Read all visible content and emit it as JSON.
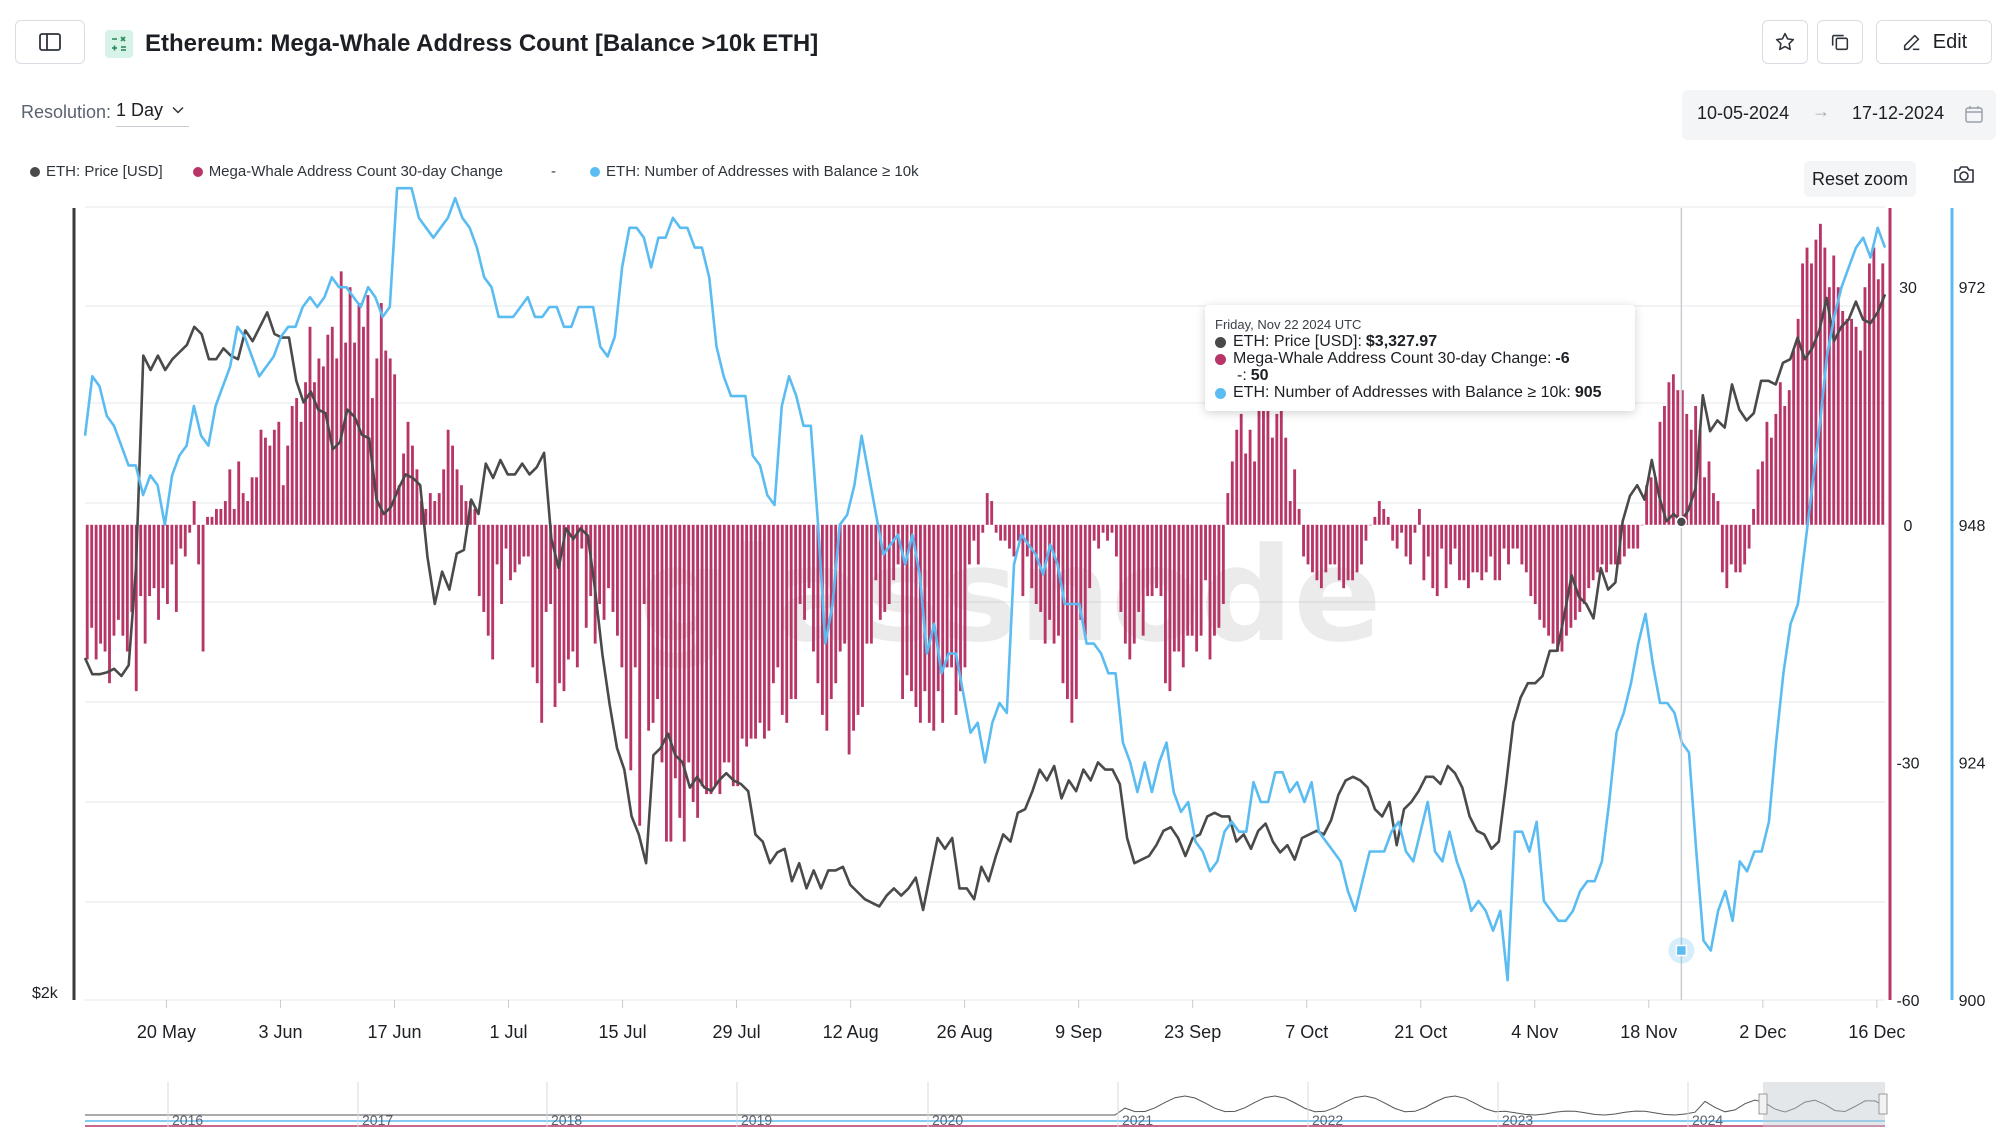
{
  "header": {
    "title": "Ethereum: Mega-Whale Address Count [Balance >10k ETH]",
    "edit_label": "Edit",
    "icons": [
      "sidebar-toggle-icon",
      "formula-icon",
      "star-icon",
      "copy-icon",
      "pencil-icon"
    ]
  },
  "controls": {
    "resolution_label": "Resolution:",
    "resolution_value": "1 Day",
    "date_from": "10-05-2024",
    "date_arrow": "→",
    "date_to": "17-12-2024",
    "reset_zoom": "Reset zoom"
  },
  "legend": [
    {
      "label": "ETH: Price [USD]",
      "color": "#4a4a4a"
    },
    {
      "label": "Mega-Whale Address Count 30-day Change",
      "color": "#b83567"
    },
    {
      "label": "-",
      "color": ""
    },
    {
      "label": "ETH: Number of Addresses with Balance ≥ 10k",
      "color": "#5bbcf2"
    }
  ],
  "tooltip": {
    "date": "Friday, Nov 22 2024 UTC",
    "row1_label": "ETH: Price [USD]:",
    "row1_value": "$3,327.97",
    "row2_label": "Mega-Whale Address Count 30-day Change:",
    "row2_value": "-6",
    "row3_label": "-:",
    "row3_value": "50",
    "row4_label": "ETH: Number of Addresses with Balance ≥ 10k:",
    "row4_value": "905"
  },
  "watermark": "glassnode",
  "chart_data": {
    "type": "bar+line",
    "x_ticks": [
      "20 May",
      "3 Jun",
      "17 Jun",
      "1 Jul",
      "15 Jul",
      "29 Jul",
      "12 Aug",
      "26 Aug",
      "9 Sep",
      "23 Sep",
      "7 Oct",
      "21 Oct",
      "4 Nov",
      "18 Nov",
      "2 Dec",
      "16 Dec"
    ],
    "x_range": [
      "2024-05-10",
      "2024-12-17"
    ],
    "left_axis": {
      "ticks": [
        "$2k"
      ]
    },
    "right_change_axis": {
      "ticks": [
        30,
        0,
        -30,
        -60
      ],
      "ylim": [
        -60,
        40
      ]
    },
    "right_count_axis": {
      "ticks": [
        972,
        948,
        924,
        900
      ],
      "ylim": [
        900,
        980
      ]
    },
    "highlight": {
      "date": "2024-11-22",
      "count": 905,
      "change": -6,
      "price": 3327.97
    },
    "series": [
      {
        "name": "ETH: Number of Addresses with Balance ≥ 10k",
        "axis": "count",
        "type": "line",
        "color": "#5bbcf2",
        "values": [
          957,
          963,
          962,
          959,
          958,
          956,
          954,
          954,
          951,
          953,
          952,
          948,
          953,
          955,
          956,
          960,
          957,
          956,
          960,
          962,
          964,
          968,
          967,
          965,
          963,
          964,
          965,
          967,
          968,
          968,
          970,
          971,
          970,
          971,
          973,
          972,
          972,
          971,
          970,
          972,
          971,
          969,
          970,
          982,
          982,
          982,
          979,
          978,
          977,
          978,
          979,
          981,
          979,
          978,
          976,
          973,
          972,
          969,
          969,
          969,
          970,
          971,
          969,
          969,
          970,
          970,
          968,
          968,
          970,
          970,
          970,
          966,
          965,
          967,
          974,
          978,
          978,
          977,
          974,
          977,
          977,
          979,
          978,
          978,
          976,
          976,
          973,
          966,
          963,
          961,
          961,
          961,
          955,
          954,
          951,
          950,
          960,
          963,
          961,
          958,
          958,
          948,
          936,
          940,
          948,
          949,
          952,
          957,
          953,
          949,
          945,
          946,
          947,
          944,
          947,
          943,
          935,
          938,
          933,
          935,
          935,
          931,
          927,
          928,
          924,
          928,
          930,
          929,
          944,
          947,
          946,
          945,
          943,
          946,
          944,
          940,
          940,
          940,
          936,
          936,
          935,
          933,
          933,
          926,
          924,
          921,
          924,
          921,
          924,
          926,
          921,
          919,
          920,
          916,
          915,
          913,
          914,
          917,
          918,
          917,
          917,
          922,
          920,
          920,
          923,
          923,
          921,
          922,
          920,
          922,
          917,
          916,
          915,
          914,
          911,
          909,
          912,
          915,
          915,
          915,
          917,
          918,
          915,
          914,
          917,
          920,
          915,
          914,
          917,
          914,
          912,
          909,
          910,
          909,
          907,
          909,
          902,
          917,
          917,
          915,
          918,
          910,
          909,
          908,
          908,
          909,
          911,
          912,
          912,
          914,
          920,
          927,
          929,
          932,
          936,
          939,
          934,
          930,
          930,
          929,
          926,
          925,
          915,
          906,
          905,
          909,
          911,
          908,
          914,
          913,
          915,
          915,
          918,
          926,
          933,
          938,
          940,
          946,
          952,
          958,
          965,
          969,
          972,
          974,
          976,
          977,
          975,
          978,
          976
        ]
      },
      {
        "name": "ETH: Price [USD]",
        "axis": "price",
        "type": "line",
        "color": "#4a4a4a",
        "values": [
          2950,
          2905,
          2905,
          2910,
          2920,
          2900,
          2930,
          3200,
          3790,
          3750,
          3790,
          3750,
          3780,
          3800,
          3820,
          3870,
          3850,
          3780,
          3780,
          3810,
          3790,
          3780,
          3860,
          3830,
          3870,
          3910,
          3850,
          3840,
          3840,
          3720,
          3660,
          3690,
          3640,
          3630,
          3530,
          3550,
          3640,
          3620,
          3570,
          3560,
          3390,
          3350,
          3370,
          3420,
          3460,
          3450,
          3430,
          3230,
          3100,
          3190,
          3140,
          3240,
          3250,
          3390,
          3350,
          3490,
          3450,
          3500,
          3460,
          3460,
          3490,
          3460,
          3480,
          3520,
          3280,
          3200,
          3310,
          3280,
          3310,
          3290,
          3140,
          2960,
          2820,
          2700,
          2640,
          2510,
          2460,
          2380,
          2680,
          2700,
          2740,
          2680,
          2660,
          2590,
          2620,
          2590,
          2580,
          2610,
          2630,
          2610,
          2600,
          2580,
          2460,
          2440,
          2380,
          2410,
          2420,
          2330,
          2380,
          2310,
          2360,
          2310,
          2360,
          2360,
          2370,
          2320,
          2300,
          2280,
          2270,
          2260,
          2290,
          2310,
          2290,
          2310,
          2340,
          2250,
          2350,
          2450,
          2420,
          2450,
          2310,
          2310,
          2280,
          2370,
          2330,
          2400,
          2460,
          2440,
          2520,
          2530,
          2580,
          2640,
          2610,
          2650,
          2560,
          2610,
          2580,
          2640,
          2610,
          2660,
          2640,
          2640,
          2600,
          2450,
          2380,
          2390,
          2400,
          2430,
          2470,
          2480,
          2450,
          2400,
          2450,
          2460,
          2510,
          2520,
          2510,
          2510,
          2440,
          2460,
          2420,
          2470,
          2490,
          2440,
          2410,
          2430,
          2390,
          2450,
          2460,
          2470,
          2460,
          2500,
          2570,
          2610,
          2620,
          2610,
          2590,
          2530,
          2510,
          2550,
          2430,
          2530,
          2550,
          2580,
          2620,
          2620,
          2600,
          2650,
          2630,
          2590,
          2510,
          2470,
          2460,
          2420,
          2440,
          2600,
          2770,
          2840,
          2880,
          2880,
          2900,
          2970,
          2970,
          3070,
          3180,
          3120,
          3100,
          3060,
          3200,
          3140,
          3160,
          3330,
          3400,
          3430,
          3390,
          3500,
          3400,
          3330,
          3350,
          3330,
          3360,
          3420,
          3680,
          3580,
          3610,
          3590,
          3710,
          3640,
          3610,
          3630,
          3720,
          3720,
          3710,
          3770,
          3780,
          3840,
          3780,
          3810,
          3860,
          3950,
          3830,
          3870,
          3890,
          3940,
          3890,
          3880,
          3910,
          3960
        ]
      },
      {
        "name": "Mega-Whale Address Count 30-day Change",
        "axis": "change",
        "type": "bar",
        "color": "#b83567",
        "values": [
          -17,
          -13,
          -17,
          -15,
          -16,
          -20,
          -14,
          -12,
          -14,
          -16,
          -11,
          -21,
          -9,
          -15,
          -9,
          -8,
          -12,
          -8,
          -10,
          -5,
          -11,
          -3,
          -4,
          -1,
          3,
          -5,
          -16,
          1,
          1,
          2,
          2,
          3,
          7,
          2,
          8,
          4,
          3,
          6,
          6,
          12,
          11,
          10,
          12,
          13,
          5,
          10,
          15,
          16,
          13,
          18,
          25,
          18,
          21,
          20,
          24,
          25,
          21,
          32,
          23,
          30,
          23,
          28,
          25,
          29,
          16,
          21,
          28,
          22,
          21,
          19,
          5,
          9,
          13,
          10,
          7,
          3,
          2,
          4,
          3,
          4,
          7,
          12,
          10,
          7,
          5,
          3,
          3,
          2,
          -9,
          -11,
          -14,
          -17,
          -5,
          -10,
          -3,
          -7,
          -6,
          -5,
          -4,
          -4,
          -18,
          -20,
          -25,
          -11,
          -10,
          -23,
          -20,
          -21,
          -17,
          -16,
          -18,
          -3,
          -13,
          -9,
          -15,
          -10,
          -12,
          -8,
          -11,
          -14,
          -18,
          -27,
          -31,
          -18,
          -38,
          -10,
          -26,
          -25,
          -22,
          -30,
          -40,
          -40,
          -32,
          -37,
          -40,
          -30,
          -35,
          -37,
          -33,
          -34,
          -34,
          -33,
          -34,
          -30,
          -30,
          -33,
          -33,
          -27,
          -28,
          -27,
          -27,
          -25,
          -27,
          -26,
          -20,
          -18,
          -24,
          -25,
          -22,
          -22,
          -10,
          -12,
          -8,
          -16,
          -20,
          -24,
          -26,
          -22,
          -20,
          -16,
          -15,
          -29,
          -26,
          -24,
          -23,
          -15,
          -15,
          -7,
          -12,
          -11,
          -10,
          -7,
          -5,
          -22,
          -19,
          -21,
          -23,
          -25,
          -21,
          -25,
          -26,
          -21,
          -25,
          -18,
          -18,
          -24,
          -21,
          -18,
          -5,
          -2,
          -5,
          -1,
          4,
          3,
          -1,
          -2,
          -2,
          -3,
          -4,
          -2,
          -9,
          -4,
          -8,
          -10,
          -11,
          -15,
          -12,
          -15,
          -14,
          -20,
          -22,
          -25,
          -22,
          -12,
          -14,
          -8,
          -2,
          -3,
          -1,
          -2,
          -1,
          -4,
          -11,
          -15,
          -17,
          -15,
          -11,
          -14,
          -9,
          -9,
          -8,
          -9,
          -20,
          -21,
          -16,
          -16,
          -18,
          -14,
          -14,
          -16,
          -14,
          -7,
          -17,
          -14,
          -13,
          -10,
          4,
          8,
          12,
          14,
          9,
          12,
          8,
          15,
          17,
          15,
          11,
          14,
          15,
          11,
          3,
          7,
          2,
          -4,
          -5,
          -6,
          -7,
          -8,
          -6,
          -5,
          -5,
          -7,
          -8,
          -7,
          -7,
          -6,
          -5,
          -2,
          0,
          1,
          3,
          2,
          1,
          -2,
          -3,
          -1,
          -4,
          -5,
          -1,
          2,
          -7,
          -4,
          -8,
          -9,
          -3,
          -8,
          -5,
          -3,
          -7,
          -7,
          -8,
          -6,
          -6,
          -7,
          -6,
          -4,
          -7,
          -7,
          -3,
          -5,
          -3,
          -3,
          -5,
          -6,
          -9,
          -10,
          -12,
          -13,
          -14,
          -15,
          -16,
          -16,
          -14,
          -13,
          -12,
          -11,
          -10,
          -8,
          -7,
          -6,
          -5,
          -6,
          -5,
          -5,
          -5,
          -4,
          -3,
          -3,
          -3,
          0,
          5,
          6,
          6,
          13,
          15,
          18,
          19,
          17,
          17,
          14,
          12,
          15,
          12,
          6,
          8,
          4,
          3,
          -6,
          -8,
          -5,
          -6,
          -6,
          -5,
          -3,
          2,
          7,
          8,
          13,
          11,
          14,
          18,
          15,
          17,
          22,
          26,
          33,
          35,
          33,
          36,
          38,
          35,
          30,
          34,
          30,
          27,
          26,
          26,
          25,
          22,
          30,
          33,
          35,
          31,
          33
        ]
      }
    ]
  },
  "minimap": {
    "year_labels": [
      "2016",
      "2017",
      "2018",
      "2019",
      "2020",
      "2021",
      "2022",
      "2023",
      "2024"
    ]
  }
}
